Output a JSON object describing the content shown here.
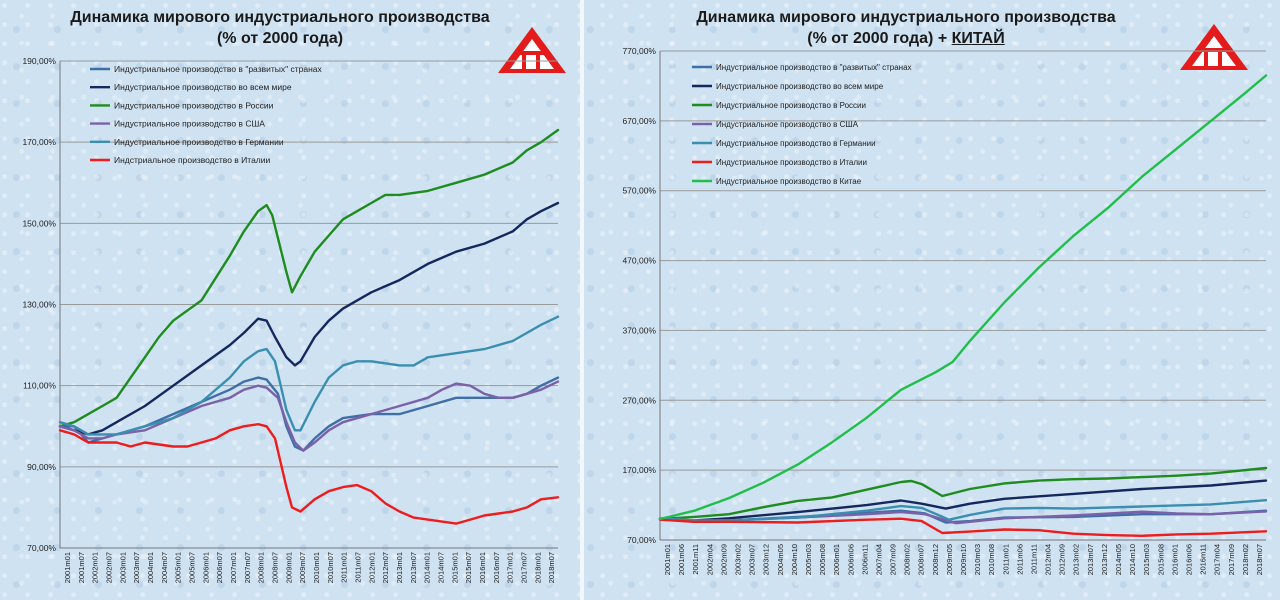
{
  "chart_data": [
    {
      "type": "line",
      "title": "Динамика мирового индустриального производства",
      "subtitle": "(% от 2000 года)",
      "ylim": [
        70,
        190
      ],
      "yticks": [
        "70,00%",
        "90,00%",
        "110,00%",
        "130,00%",
        "150,00%",
        "170,00%",
        "190,00%"
      ],
      "ytick_values": [
        70,
        90,
        110,
        130,
        150,
        170,
        190
      ],
      "grid": true,
      "legend": "top-left",
      "x_range": [
        2001,
        2018.6
      ],
      "xticks": [
        "2001m01",
        "2001m07",
        "2002m01",
        "2002m07",
        "2003m01",
        "2003m07",
        "2004m01",
        "2004m07",
        "2005m01",
        "2005m07",
        "2006m01",
        "2006m07",
        "2007m01",
        "2007m07",
        "2008m01",
        "2008m07",
        "2009m01",
        "2009m07",
        "2010m01",
        "2010m07",
        "2011m01",
        "2011m07",
        "2012m01",
        "2012m07",
        "2013m01",
        "2013m07",
        "2014m01",
        "2014m07",
        "2015m01",
        "2015m07",
        "2016m01",
        "2016m07",
        "2017m01",
        "2017m07",
        "2018m01",
        "2018m07"
      ],
      "series": [
        {
          "name": "Индустриальное производство в \"развитых\" странах",
          "color": "#3f6fa6",
          "x": [
            2001,
            2001.5,
            2002,
            2002.5,
            2003,
            2004,
            2005,
            2006,
            2007,
            2007.5,
            2008,
            2008.3,
            2008.7,
            2009,
            2009.3,
            2009.6,
            2010,
            2010.5,
            2011,
            2012,
            2013,
            2014,
            2015,
            2016,
            2017,
            2017.5,
            2018,
            2018.6
          ],
          "y": [
            100,
            100,
            96,
            97,
            98,
            100,
            103,
            106,
            109,
            111,
            112,
            111.5,
            108,
            100,
            95,
            94,
            97,
            100,
            102,
            103,
            103,
            105,
            107,
            107,
            107,
            108,
            110,
            112
          ]
        },
        {
          "name": "Индустриальное производство во всем мире",
          "color": "#14285e",
          "x": [
            2001,
            2001.5,
            2002,
            2002.5,
            2003,
            2004,
            2005,
            2006,
            2007,
            2007.5,
            2008,
            2008.3,
            2008.6,
            2009,
            2009.3,
            2009.5,
            2010,
            2010.5,
            2011,
            2012,
            2013,
            2014,
            2015,
            2016,
            2017,
            2017.5,
            2018,
            2018.6
          ],
          "y": [
            100,
            99,
            98,
            99,
            101,
            105,
            110,
            115,
            120,
            123,
            126.5,
            126,
            122,
            117,
            115,
            116,
            122,
            126,
            129,
            133,
            136,
            140,
            143,
            145,
            148,
            151,
            153,
            155
          ]
        },
        {
          "name": "Индустриальное производство в России",
          "color": "#1e8c1e",
          "x": [
            2001,
            2001.5,
            2002,
            2002.5,
            2003,
            2003.5,
            2004,
            2004.5,
            2005,
            2006,
            2007,
            2007.5,
            2008,
            2008.3,
            2008.5,
            2009,
            2009.2,
            2009.5,
            2010,
            2010.5,
            2011,
            2011.5,
            2012,
            2012.5,
            2013,
            2014,
            2015,
            2016,
            2017,
            2017.5,
            2018,
            2018.6
          ],
          "y": [
            100,
            101,
            103,
            105,
            107,
            112,
            117,
            122,
            126,
            131,
            142,
            148,
            153,
            154.5,
            152,
            138,
            133,
            137,
            143,
            147,
            151,
            153,
            155,
            157,
            157,
            158,
            160,
            162,
            165,
            168,
            170,
            173
          ]
        },
        {
          "name": "Индустриальное производство в США",
          "color": "#7b62a8",
          "x": [
            2001,
            2001.5,
            2002,
            2002.5,
            2003,
            2004,
            2005,
            2006,
            2007,
            2007.5,
            2008,
            2008.3,
            2008.7,
            2009,
            2009.3,
            2009.6,
            2010,
            2010.5,
            2011,
            2012,
            2013,
            2014,
            2014.5,
            2015,
            2015.5,
            2016,
            2016.5,
            2017,
            2017.5,
            2018,
            2018.6
          ],
          "y": [
            100,
            99,
            97,
            97,
            98,
            99,
            102,
            105,
            107,
            109,
            110,
            109.5,
            107,
            101,
            96,
            94,
            96,
            99,
            101,
            103,
            105,
            107,
            109,
            110.5,
            110,
            108,
            107,
            107,
            108,
            109,
            111
          ]
        },
        {
          "name": "Индустриальное производство в Германии",
          "color": "#3a8fb0",
          "x": [
            2001,
            2001.5,
            2002,
            2002.5,
            2003,
            2004,
            2005,
            2006,
            2007,
            2007.5,
            2008,
            2008.3,
            2008.6,
            2009,
            2009.3,
            2009.5,
            2010,
            2010.5,
            2011,
            2011.5,
            2012,
            2013,
            2013.5,
            2014,
            2015,
            2016,
            2017,
            2018,
            2018.6
          ],
          "y": [
            101,
            100,
            98,
            98,
            98,
            100,
            102,
            106,
            112,
            116,
            118.5,
            119,
            116,
            104,
            99,
            99,
            106,
            112,
            115,
            116,
            116,
            115,
            115,
            117,
            118,
            119,
            121,
            125,
            127
          ]
        },
        {
          "name": "Индстриальное производство в Италии",
          "color": "#ee1c1c",
          "x": [
            2001,
            2001.5,
            2002,
            2002.5,
            2003,
            2003.5,
            2004,
            2004.5,
            2005,
            2005.5,
            2006,
            2006.5,
            2007,
            2007.5,
            2008,
            2008.3,
            2008.6,
            2009,
            2009.2,
            2009.5,
            2010,
            2010.5,
            2011,
            2011.5,
            2012,
            2012.5,
            2013,
            2013.5,
            2014,
            2014.5,
            2015,
            2015.5,
            2016,
            2016.5,
            2017,
            2017.5,
            2018,
            2018.6
          ],
          "y": [
            99,
            98,
            96,
            96,
            96,
            95,
            96,
            95.5,
            95,
            95,
            96,
            97,
            99,
            100,
            100.5,
            100,
            97,
            85,
            80,
            79,
            82,
            84,
            85,
            85.5,
            84,
            81,
            79,
            77.5,
            77,
            76.5,
            76,
            77,
            78,
            78.5,
            79,
            80,
            82,
            82.5
          ]
        }
      ]
    },
    {
      "type": "line",
      "title": "Динамика мирового индустриального производства",
      "subtitle_prefix": "(% от 2000 года) + ",
      "subtitle_emph": "КИТАЙ",
      "ylim": [
        70,
        770
      ],
      "yticks": [
        "70,00%",
        "170,00%",
        "270,00%",
        "370,00%",
        "470,00%",
        "570,00%",
        "670,00%",
        "770,00%"
      ],
      "ytick_values": [
        70,
        170,
        270,
        370,
        470,
        570,
        670,
        770
      ],
      "grid": true,
      "legend": "top-left",
      "x_range": [
        2001,
        2018.6
      ],
      "xticks": [
        "2001m01",
        "2001m06",
        "2001m11",
        "2002m04",
        "2002m09",
        "2003m02",
        "2003m07",
        "2003m12",
        "2004m05",
        "2004m10",
        "2005m03",
        "2005m08",
        "2006m01",
        "2006m06",
        "2006m11",
        "2007m04",
        "2007m09",
        "2008m02",
        "2008m07",
        "2008m12",
        "2009m05",
        "2009m10",
        "2010m03",
        "2010m08",
        "2011m01",
        "2011m06",
        "2011m11",
        "2012m04",
        "2012m09",
        "2013m02",
        "2013m07",
        "2013m12",
        "2014m05",
        "2014m10",
        "2015m03",
        "2015m08",
        "2016m01",
        "2016m06",
        "2016m11",
        "2017m04",
        "2017m09",
        "2018m02",
        "2018m07"
      ],
      "series": [
        {
          "name": "Индустриальное производство в \"развитых\" странах",
          "color": "#3f6fa6",
          "x": [
            2001,
            2002,
            2003,
            2005,
            2007,
            2008,
            2008.7,
            2009.3,
            2010,
            2011,
            2013,
            2015,
            2017,
            2018.6
          ],
          "y": [
            100,
            96,
            98,
            103,
            109,
            112,
            108,
            95,
            97,
            102,
            103,
            107,
            107,
            112
          ]
        },
        {
          "name": "Индустриальное производство во всем мире",
          "color": "#14285e",
          "x": [
            2001,
            2002,
            2003,
            2005,
            2007,
            2008,
            2008.6,
            2009.3,
            2010,
            2011,
            2013,
            2015,
            2017,
            2018.6
          ],
          "y": [
            100,
            98,
            101,
            110,
            120,
            126.5,
            122,
            115,
            122,
            129,
            136,
            143,
            148,
            155
          ]
        },
        {
          "name": "Индустриальное производство в России",
          "color": "#1e8c1e",
          "x": [
            2001,
            2002,
            2003,
            2004,
            2005,
            2006,
            2007,
            2008,
            2008.3,
            2008.6,
            2009.2,
            2010,
            2011,
            2012,
            2013,
            2014,
            2015,
            2016,
            2017,
            2018.6
          ],
          "y": [
            100,
            103,
            107,
            117,
            126,
            131,
            142,
            153,
            154.5,
            150,
            133,
            143,
            151,
            155,
            157,
            158,
            160,
            162,
            165,
            173
          ]
        },
        {
          "name": "Индустриальное производство в США",
          "color": "#7b62a8",
          "x": [
            2001,
            2002,
            2003,
            2005,
            2007,
            2008,
            2008.7,
            2009.6,
            2010,
            2011,
            2013,
            2015,
            2016,
            2017,
            2018.6
          ],
          "y": [
            100,
            97,
            98,
            102,
            107,
            110,
            107,
            94,
            96,
            101,
            105,
            110.5,
            108,
            107,
            111
          ]
        },
        {
          "name": "Индустриальное производство в Германии",
          "color": "#3a8fb0",
          "x": [
            2001,
            2002,
            2003,
            2005,
            2007,
            2008,
            2008.6,
            2009.4,
            2010,
            2011,
            2012,
            2013,
            2015,
            2017,
            2018.6
          ],
          "y": [
            101,
            98,
            98,
            102,
            112,
            118.5,
            116,
            99,
            106,
            115,
            116,
            115,
            118,
            121,
            127
          ]
        },
        {
          "name": "Индустриальное производство в Италии",
          "color": "#ee1c1c",
          "x": [
            2001,
            2002,
            2003,
            2005,
            2007,
            2008,
            2008.6,
            2009.2,
            2010,
            2011,
            2012,
            2013,
            2014,
            2015,
            2016,
            2017,
            2018.6
          ],
          "y": [
            99,
            96,
            96,
            95,
            99,
            100.5,
            97,
            80,
            82,
            85,
            84,
            79,
            77,
            76,
            78,
            79,
            82.5
          ]
        },
        {
          "name": "Индустриальное производство в Китае",
          "color": "#1fbf4a",
          "x": [
            2001,
            2002,
            2003,
            2004,
            2005,
            2006,
            2007,
            2008,
            2008.6,
            2009,
            2009.5,
            2010,
            2011,
            2012,
            2013,
            2014,
            2015,
            2016,
            2017,
            2018,
            2018.6
          ],
          "y": [
            100,
            112,
            130,
            152,
            178,
            210,
            245,
            285,
            300,
            310,
            325,
            355,
            410,
            460,
            505,
            545,
            590,
            630,
            670,
            710,
            735
          ]
        }
      ]
    }
  ]
}
